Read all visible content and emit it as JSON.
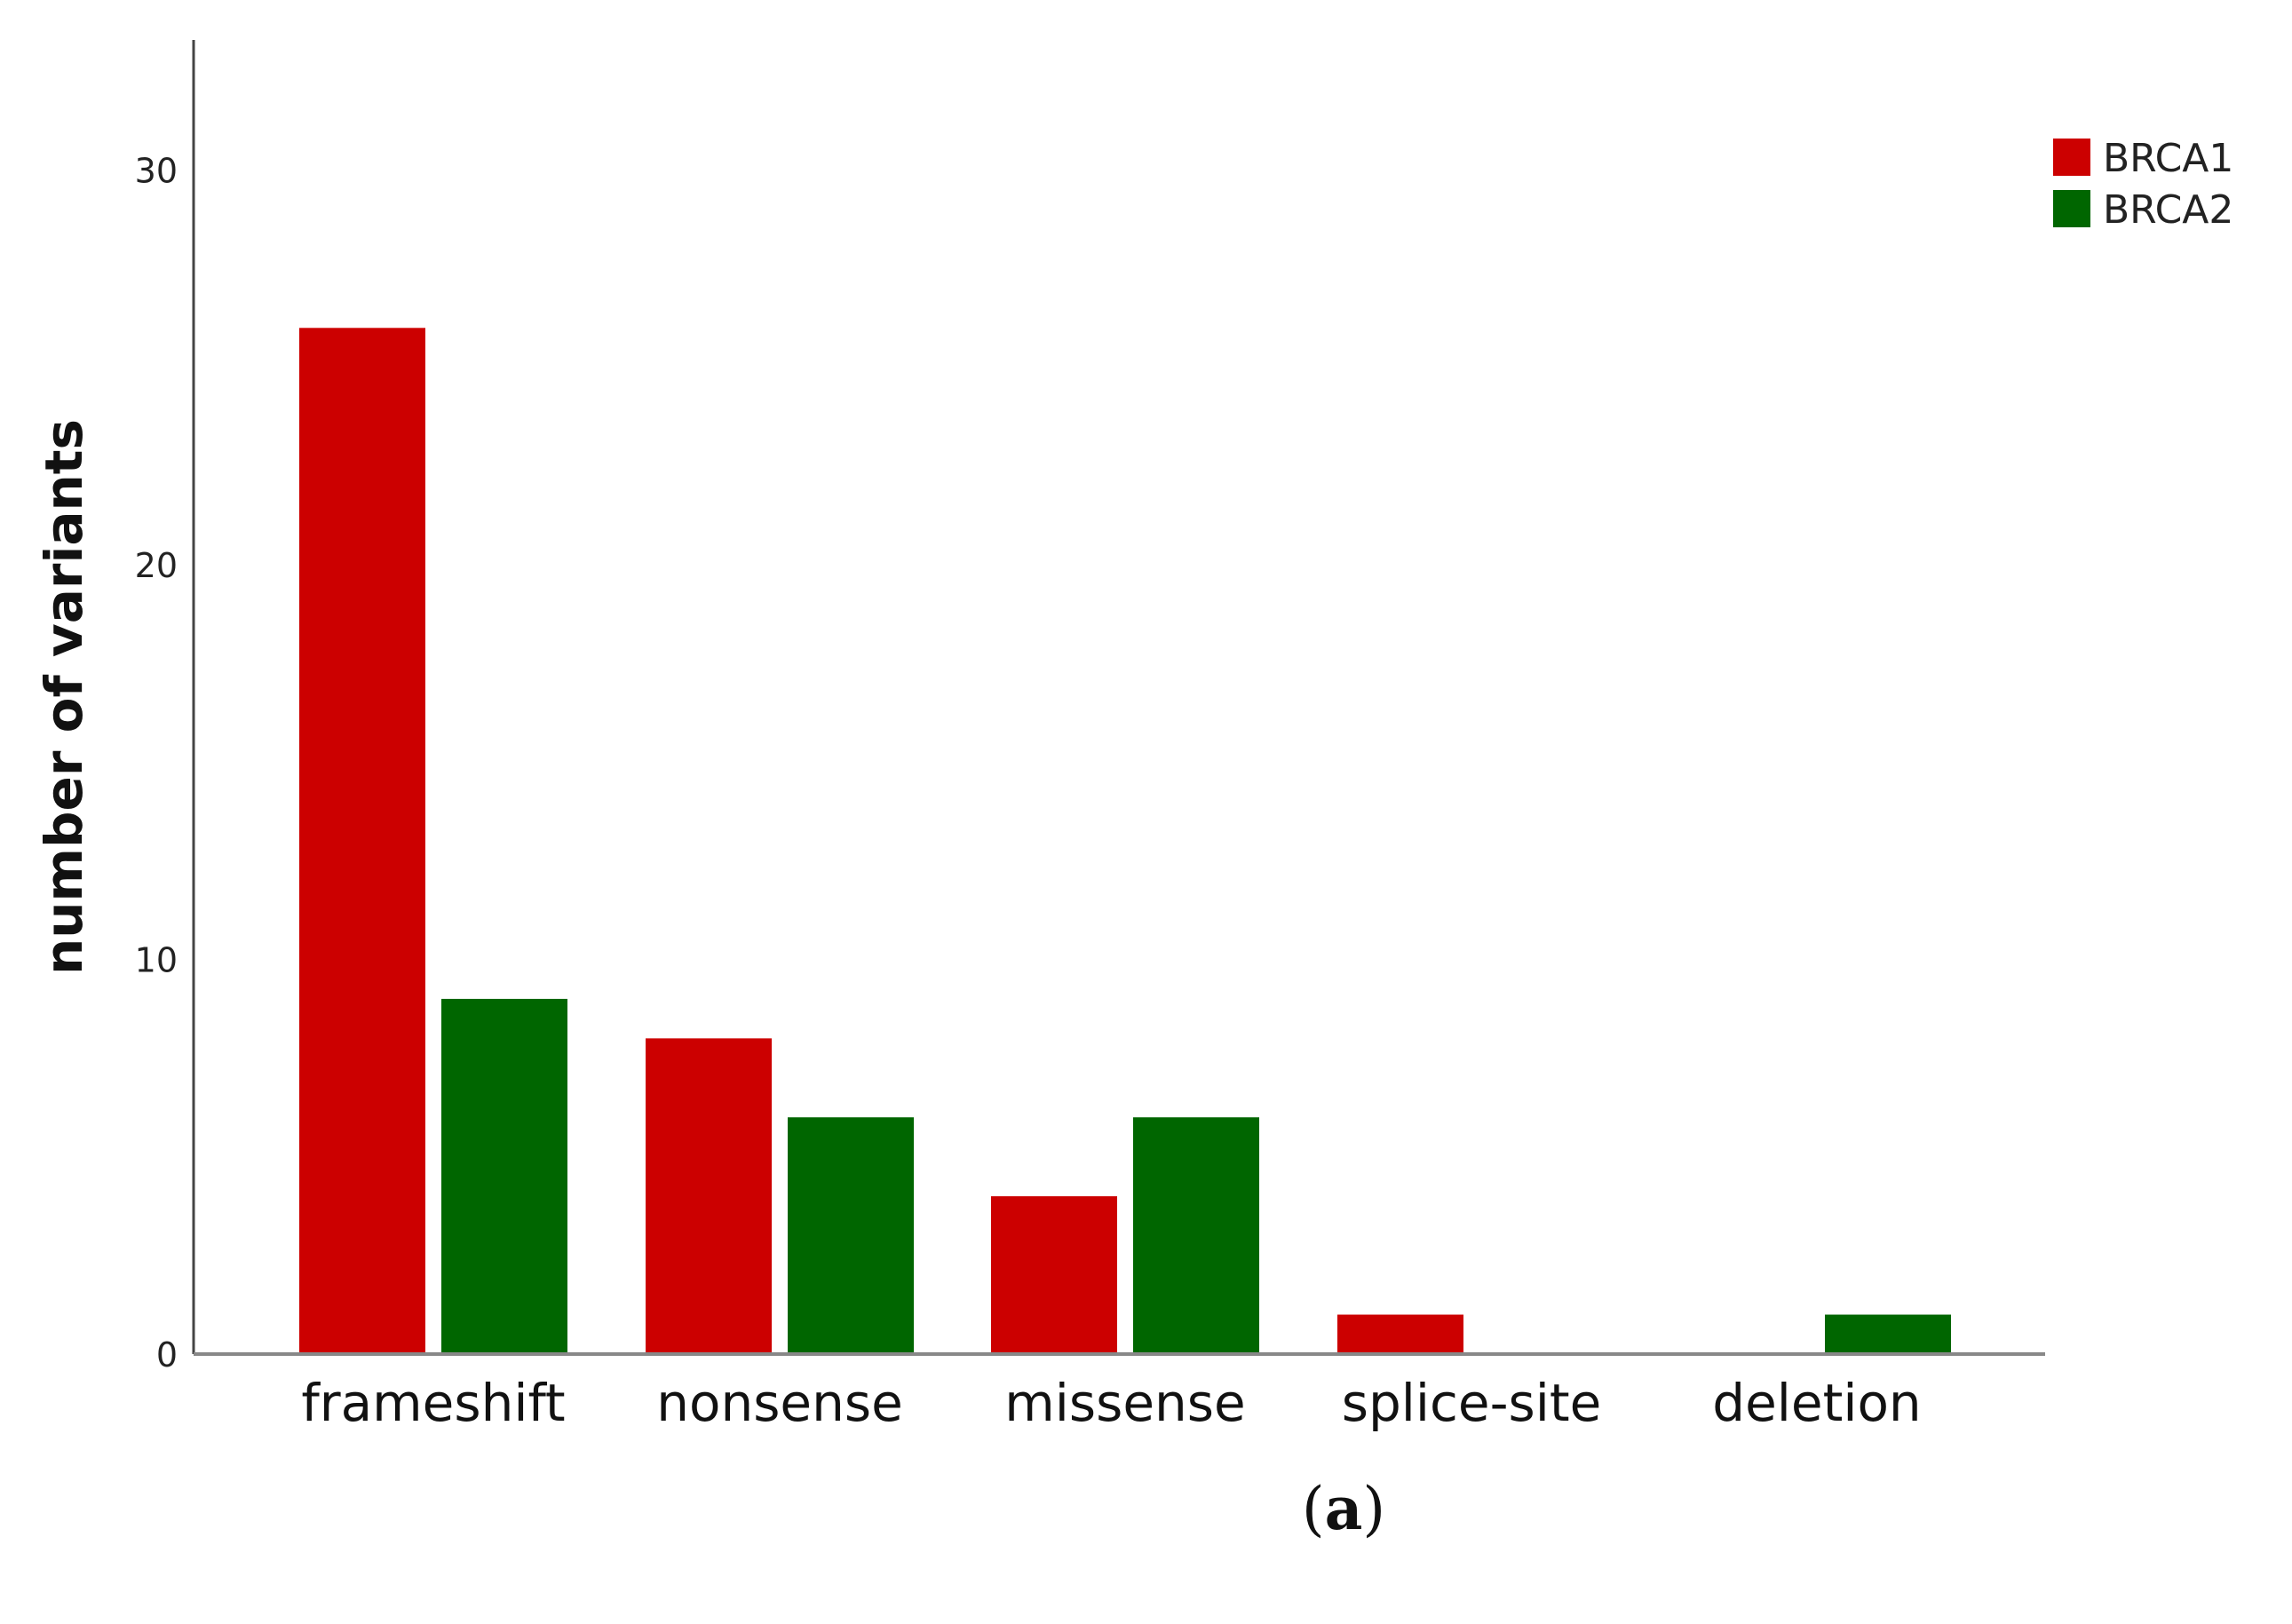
{
  "chart_data": {
    "type": "bar",
    "categories": [
      "frameshift",
      "nonsense",
      "missense",
      "splice-site",
      "deletion"
    ],
    "series": [
      {
        "name": "BRCA1",
        "color": "#cc0000",
        "values": [
          26,
          8,
          4,
          1,
          0
        ]
      },
      {
        "name": "BRCA2",
        "color": "#006600",
        "values": [
          9,
          6,
          6,
          0,
          1
        ]
      }
    ],
    "ylabel": "number of variants",
    "xlabel": "",
    "ylim": [
      0,
      33
    ],
    "yticks": [
      0,
      10,
      20,
      30
    ],
    "legend": "top-right",
    "grid": false,
    "panel_label": "a"
  }
}
